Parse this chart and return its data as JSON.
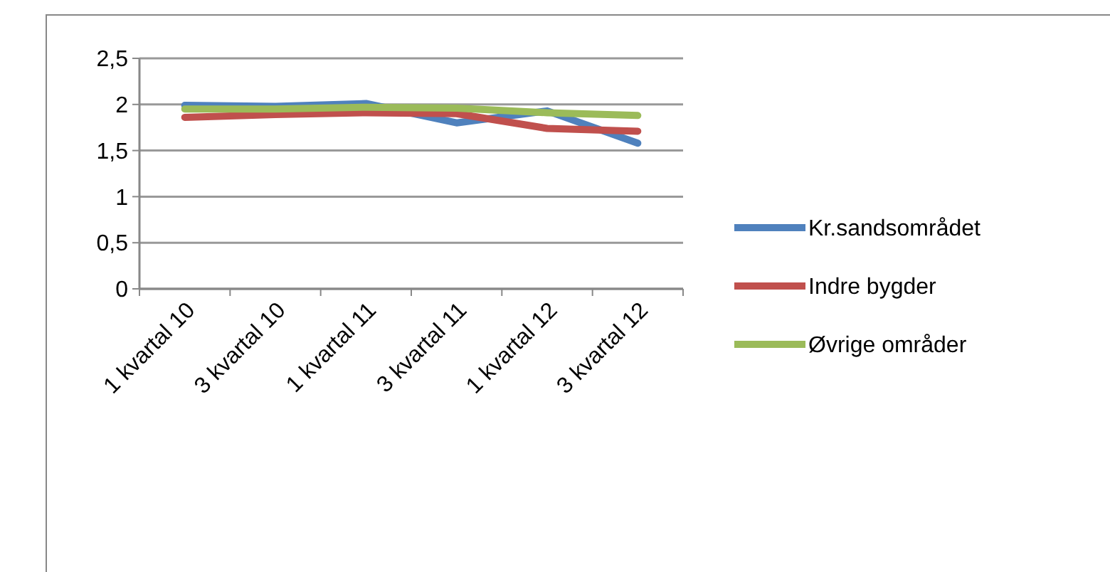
{
  "chart_data": {
    "type": "line",
    "categories": [
      "1 kvartal 10",
      "3 kvartal 10",
      "1 kvartal 11",
      "3 kvartal 11",
      "1 kvartal 12",
      "3 kvartal 12"
    ],
    "series": [
      {
        "name": "Kr.sandsområdet",
        "color": "#4f81bd",
        "values": [
          1.99,
          1.98,
          2.01,
          1.8,
          1.93,
          1.58
        ]
      },
      {
        "name": "Indre bygder",
        "color": "#c0504d",
        "values": [
          1.86,
          1.89,
          1.91,
          1.9,
          1.74,
          1.71
        ]
      },
      {
        "name": "Øvrige områder",
        "color": "#9bbb59",
        "values": [
          1.95,
          1.95,
          1.97,
          1.96,
          1.91,
          1.88
        ]
      }
    ],
    "ylim": [
      0,
      2.5
    ],
    "yticks": [
      0,
      {
        "value": 0.5,
        "label": "0,5"
      },
      1,
      {
        "value": 1.5,
        "label": "1,5"
      },
      2,
      {
        "value": 2.5,
        "label": "2,5"
      }
    ],
    "grid": "y",
    "legend": "right",
    "marker": "none",
    "line_style": "solid"
  }
}
